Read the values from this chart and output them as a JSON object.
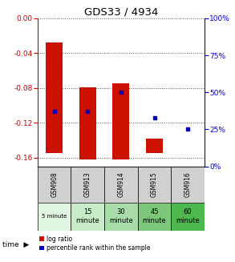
{
  "title": "GDS33 / 4934",
  "samples": [
    "GSM908",
    "GSM913",
    "GSM914",
    "GSM915",
    "GSM916"
  ],
  "time_labels_line1": [
    "5 minute",
    "15",
    "30",
    "45",
    "60"
  ],
  "time_labels_line2": [
    "",
    "minute",
    "minute",
    "minute",
    "minute"
  ],
  "time_bg_colors": [
    "#dff5df",
    "#c8ecc8",
    "#a8dca8",
    "#7bc87b",
    "#4db84d"
  ],
  "log_ratio_bottoms": [
    -0.155,
    -0.162,
    -0.162,
    -0.138,
    -0.148
  ],
  "log_ratio_tops": [
    -0.028,
    -0.079,
    -0.075,
    -0.155,
    -0.148
  ],
  "percentile_ranks": [
    37,
    37,
    50,
    33,
    25
  ],
  "ylim_left": [
    -0.17,
    0.0
  ],
  "ylim_right": [
    0,
    100
  ],
  "yticks_left": [
    0.0,
    -0.04,
    -0.08,
    -0.12,
    -0.16
  ],
  "yticks_right": [
    0,
    25,
    50,
    75,
    100
  ],
  "bar_color": "#cc1100",
  "dot_color": "#0000bb",
  "grid_color": "#555555",
  "left_tick_color": "#cc0000",
  "right_tick_color": "#0000cc",
  "bar_width": 0.5
}
